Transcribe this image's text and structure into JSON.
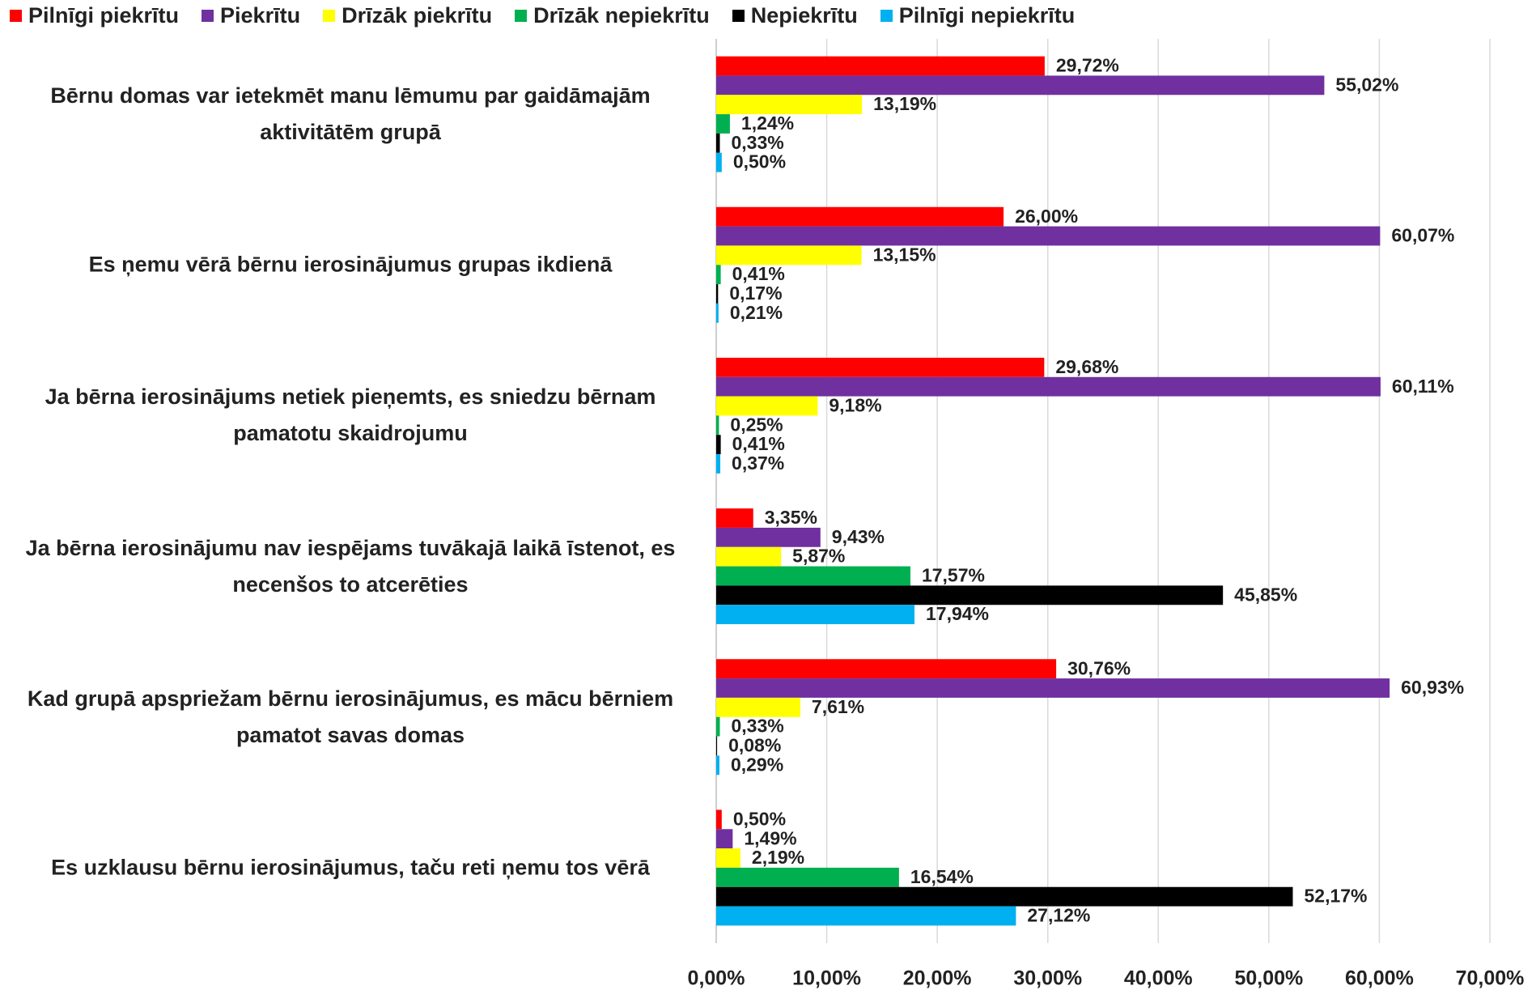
{
  "chart_data": {
    "type": "hbar",
    "categories": [
      "Bērnu domas var ietekmēt manu lēmumu par gaidāmajām aktivitātēm grupā",
      "Es ņemu vērā bērnu ierosinājumus grupas ikdienā",
      "Ja bērna ierosinājums netiek pieņemts, es sniedzu bērnam pamatotu skaidrojumu",
      "Ja bērna ierosinājumu nav iespējams tuvākajā laikā īstenot, es necenšos to atcerēties",
      "Kad grupā apspriežam bērnu ierosinājumus, es mācu bērniem pamatot savas domas",
      "Es uzklausu bērnu ierosinājumus, taču reti ņemu tos vērā"
    ],
    "series": [
      {
        "name": "Pilnīgi piekrītu",
        "color": "#ff0000",
        "values": [
          29.72,
          26.0,
          29.68,
          3.35,
          30.76,
          0.5
        ],
        "value_labels": [
          "29,72%",
          "26,00%",
          "29,68%",
          "3,35%",
          "30,76%",
          "0,50%"
        ]
      },
      {
        "name": "Piekrītu",
        "color": "#7030a0",
        "values": [
          55.02,
          60.07,
          60.11,
          9.43,
          60.93,
          1.49
        ],
        "value_labels": [
          "55,02%",
          "60,07%",
          "60,11%",
          "9,43%",
          "60,93%",
          "1,49%"
        ]
      },
      {
        "name": "Drīzāk piekrītu",
        "color": "#ffff00",
        "values": [
          13.19,
          13.15,
          9.18,
          5.87,
          7.61,
          2.19
        ],
        "value_labels": [
          "13,19%",
          "13,15%",
          "9,18%",
          "5,87%",
          "7,61%",
          "2,19%"
        ]
      },
      {
        "name": "Drīzāk nepiekrītu",
        "color": "#00b050",
        "values": [
          1.24,
          0.41,
          0.25,
          17.57,
          0.33,
          16.54
        ],
        "value_labels": [
          "1,24%",
          "0,41%",
          "0,25%",
          "17,57%",
          "0,33%",
          "16,54%"
        ]
      },
      {
        "name": "Nepiekrītu",
        "color": "#000000",
        "values": [
          0.33,
          0.17,
          0.41,
          45.85,
          0.08,
          52.17
        ],
        "value_labels": [
          "0,33%",
          "0,17%",
          "0,41%",
          "45,85%",
          "0,08%",
          "52,17%"
        ]
      },
      {
        "name": "Pilnīgi nepiekrītu",
        "color": "#00b0f0",
        "values": [
          0.5,
          0.21,
          0.37,
          17.94,
          0.29,
          27.12
        ],
        "value_labels": [
          "0,50%",
          "0,21%",
          "0,37%",
          "17,94%",
          "0,29%",
          "27,12%"
        ]
      }
    ],
    "xlim": [
      0,
      70
    ],
    "xticks": [
      {
        "value": 0,
        "label": "0,00%"
      },
      {
        "value": 10,
        "label": "10,00%"
      },
      {
        "value": 20,
        "label": "20,00%"
      },
      {
        "value": 30,
        "label": "30,00%"
      },
      {
        "value": 40,
        "label": "40,00%"
      },
      {
        "value": 50,
        "label": "50,00%"
      },
      {
        "value": 60,
        "label": "60,00%"
      },
      {
        "value": 70,
        "label": "70,00%"
      }
    ],
    "grid": true,
    "legend": "top"
  }
}
